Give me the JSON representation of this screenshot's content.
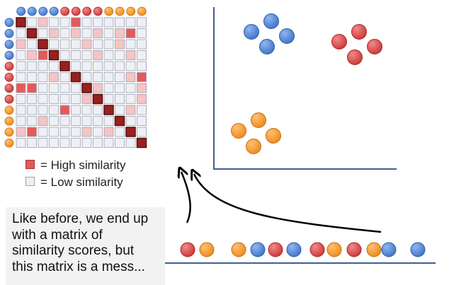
{
  "legend": {
    "high": {
      "label": "= High similarity",
      "color": "#e05a5a"
    },
    "low": {
      "label": "= Low similarity",
      "color": "#eef0f6"
    }
  },
  "caption": {
    "lines": [
      "Like before, we end up",
      "with a matrix of",
      "similarity scores, but",
      "this matrix is a mess..."
    ]
  },
  "colors": {
    "blue": "#4f84d6",
    "red": "#dd4a4a",
    "orange": "#f39a2c",
    "axis": "#3f5f94",
    "cell_empty": "#eef0f6",
    "cell_low": "#f5c4c4",
    "cell_mid": "#e45a5a",
    "cell_high": "#992020"
  },
  "matrix": {
    "dot_order": [
      "blue",
      "blue",
      "blue",
      "blue",
      "red",
      "red",
      "red",
      "red",
      "orange",
      "orange",
      "orange",
      "orange"
    ],
    "cells": [
      [
        3,
        0,
        1,
        0,
        0,
        2,
        0,
        0,
        0,
        0,
        0,
        0
      ],
      [
        0,
        3,
        0,
        1,
        0,
        1,
        0,
        1,
        0,
        1,
        2,
        0
      ],
      [
        1,
        0,
        3,
        0,
        0,
        0,
        1,
        0,
        0,
        1,
        0,
        0
      ],
      [
        0,
        1,
        2,
        3,
        0,
        0,
        0,
        1,
        0,
        0,
        1,
        0
      ],
      [
        0,
        0,
        0,
        0,
        3,
        0,
        0,
        0,
        0,
        0,
        0,
        0
      ],
      [
        0,
        0,
        0,
        1,
        0,
        3,
        0,
        0,
        0,
        0,
        1,
        2
      ],
      [
        2,
        2,
        0,
        0,
        0,
        0,
        3,
        1,
        0,
        0,
        0,
        1
      ],
      [
        0,
        0,
        0,
        0,
        0,
        0,
        1,
        3,
        0,
        0,
        0,
        1
      ],
      [
        0,
        0,
        0,
        0,
        2,
        0,
        0,
        0,
        3,
        0,
        1,
        0
      ],
      [
        0,
        0,
        1,
        0,
        0,
        0,
        0,
        0,
        0,
        3,
        0,
        0
      ],
      [
        1,
        2,
        0,
        0,
        0,
        0,
        1,
        0,
        1,
        0,
        3,
        0
      ],
      [
        0,
        0,
        0,
        0,
        0,
        0,
        0,
        0,
        0,
        0,
        0,
        3
      ]
    ]
  },
  "clusters": [
    {
      "color": "blue"
    },
    {
      "color": "red"
    },
    {
      "color": "orange"
    }
  ],
  "bottom_dots": [
    "red",
    "orange",
    "orange",
    "blue",
    "red",
    "blue",
    "red",
    "orange",
    "red",
    "orange",
    "blue",
    "blue"
  ]
}
